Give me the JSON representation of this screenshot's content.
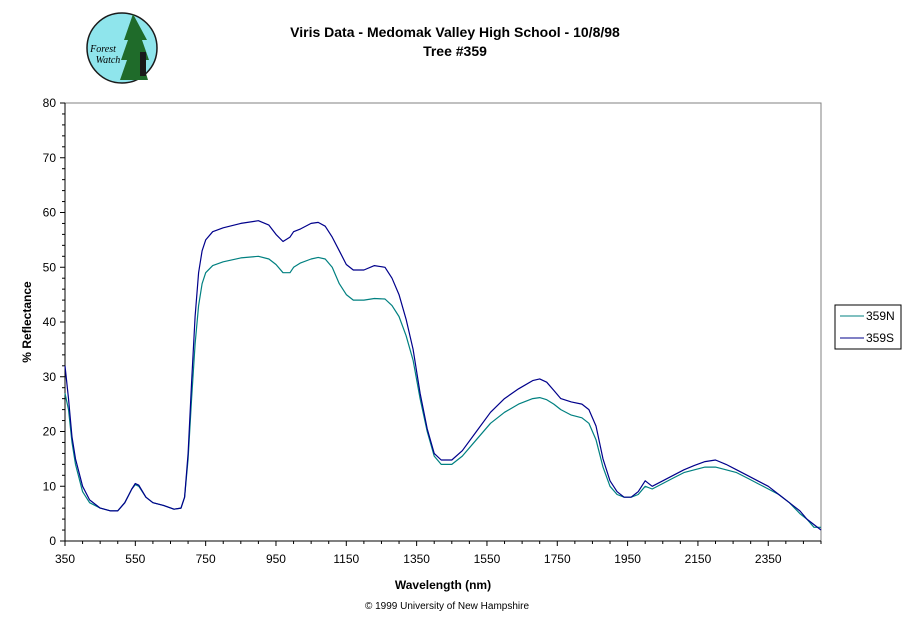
{
  "logo": {
    "line1": "Forest",
    "line2": "Watch"
  },
  "copyright": "© 1999 University of New Hampshire",
  "chart_data": {
    "type": "line",
    "title": "Viris Data - Medomak Valley High School - 10/8/98",
    "subtitle": "Tree #359",
    "xlabel": "Wavelength (nm)",
    "ylabel": "% Reflectance",
    "xlim": [
      350,
      2500
    ],
    "ylim": [
      0,
      80
    ],
    "xticks": [
      350,
      550,
      750,
      950,
      1150,
      1350,
      1550,
      1750,
      1950,
      2150,
      2350
    ],
    "yticks": [
      0,
      10,
      20,
      30,
      40,
      50,
      60,
      70,
      80
    ],
    "grid": false,
    "legend_position": "right",
    "series": [
      {
        "name": "359N",
        "color": "#008080",
        "x": [
          350,
          360,
          370,
          380,
          400,
          420,
          450,
          480,
          500,
          520,
          540,
          550,
          560,
          580,
          600,
          630,
          660,
          680,
          690,
          700,
          710,
          720,
          730,
          740,
          750,
          770,
          800,
          850,
          900,
          930,
          950,
          970,
          990,
          1000,
          1020,
          1050,
          1070,
          1090,
          1110,
          1130,
          1150,
          1170,
          1200,
          1230,
          1260,
          1280,
          1300,
          1320,
          1340,
          1360,
          1380,
          1400,
          1420,
          1450,
          1480,
          1520,
          1560,
          1600,
          1640,
          1680,
          1700,
          1720,
          1740,
          1760,
          1790,
          1820,
          1840,
          1860,
          1880,
          1900,
          1920,
          1940,
          1960,
          1980,
          2000,
          2020,
          2050,
          2080,
          2110,
          2140,
          2170,
          2200,
          2230,
          2260,
          2290,
          2320,
          2350,
          2380,
          2410,
          2440,
          2460,
          2480,
          2500
        ],
        "y": [
          27,
          24,
          18,
          14,
          9,
          7,
          6,
          5.5,
          5.5,
          7,
          9.5,
          10.3,
          10,
          8,
          7,
          6.5,
          5.8,
          6,
          8,
          15,
          26,
          36,
          43,
          47,
          49,
          50.3,
          51,
          51.7,
          52,
          51.5,
          50.5,
          49,
          49,
          50,
          50.8,
          51.5,
          51.8,
          51.5,
          50,
          47,
          45,
          44,
          44,
          44.3,
          44.2,
          43,
          41,
          37.5,
          33,
          26,
          20,
          15.5,
          14,
          14,
          15.5,
          18.5,
          21.5,
          23.5,
          25,
          26,
          26.2,
          25.8,
          25,
          24,
          23,
          22.5,
          21.5,
          18.5,
          13.5,
          10,
          8.5,
          8,
          8,
          8.5,
          10,
          9.5,
          10.5,
          11.5,
          12.5,
          13,
          13.5,
          13.5,
          13,
          12.5,
          11.5,
          10.5,
          9.5,
          8.5,
          7,
          5,
          4,
          2.5,
          2.5
        ]
      },
      {
        "name": "359S",
        "color": "#00008b",
        "x": [
          350,
          360,
          370,
          380,
          400,
          420,
          450,
          480,
          500,
          520,
          540,
          550,
          560,
          580,
          600,
          630,
          660,
          680,
          690,
          700,
          710,
          720,
          730,
          740,
          750,
          770,
          800,
          850,
          900,
          930,
          950,
          970,
          990,
          1000,
          1020,
          1050,
          1070,
          1090,
          1110,
          1130,
          1150,
          1170,
          1200,
          1230,
          1260,
          1280,
          1300,
          1320,
          1340,
          1360,
          1380,
          1400,
          1420,
          1450,
          1480,
          1520,
          1560,
          1600,
          1640,
          1680,
          1700,
          1720,
          1740,
          1760,
          1790,
          1820,
          1840,
          1860,
          1880,
          1900,
          1920,
          1940,
          1960,
          1980,
          2000,
          2020,
          2050,
          2080,
          2110,
          2140,
          2170,
          2200,
          2230,
          2260,
          2290,
          2320,
          2350,
          2380,
          2410,
          2440,
          2460,
          2480,
          2500
        ],
        "y": [
          32,
          26,
          19,
          15,
          10,
          7.5,
          6,
          5.5,
          5.5,
          7,
          9.5,
          10.5,
          10.2,
          8,
          7,
          6.5,
          5.8,
          6,
          8,
          16,
          29,
          41,
          49,
          53,
          55,
          56.5,
          57.2,
          58,
          58.5,
          57.7,
          56,
          54.7,
          55.5,
          56.5,
          57,
          58,
          58.2,
          57.5,
          55.5,
          53,
          50.5,
          49.5,
          49.5,
          50.3,
          50,
          48,
          45,
          40.5,
          35,
          27,
          20.5,
          16,
          14.8,
          14.8,
          16.5,
          20,
          23.5,
          26,
          27.8,
          29.3,
          29.6,
          29,
          27.5,
          26,
          25.4,
          25,
          24,
          21,
          15,
          11,
          9,
          8,
          8,
          9,
          11,
          10,
          11,
          12,
          13,
          13.8,
          14.5,
          14.8,
          14,
          13,
          12,
          11,
          10,
          8.5,
          7,
          5.5,
          4,
          3,
          2
        ]
      }
    ]
  }
}
